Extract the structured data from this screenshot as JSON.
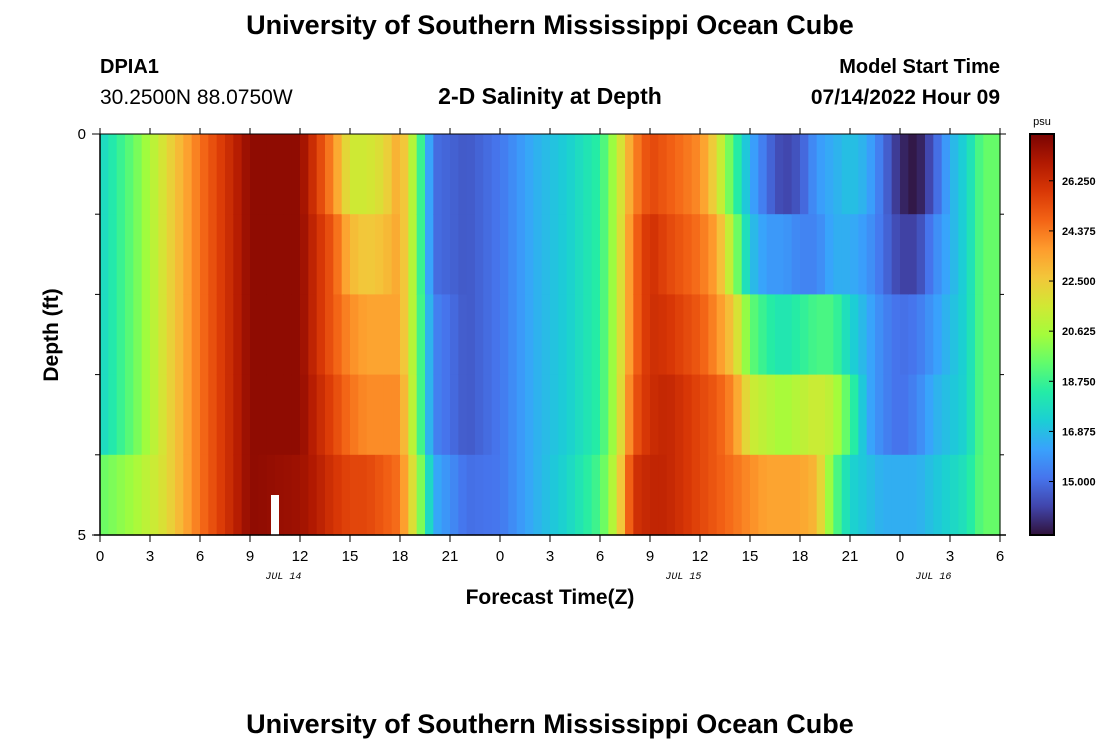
{
  "header": {
    "title": "University of Southern Mississippi Ocean Cube",
    "station": "DPIA1",
    "coordinates": "30.2500N  88.0750W",
    "subtitle": "2-D Salinity at Depth",
    "model_start_label": "Model Start Time",
    "model_start_value": "07/14/2022 Hour 09"
  },
  "footer": {
    "title": "University of Southern Mississippi Ocean Cube"
  },
  "chart_data": {
    "type": "heatmap",
    "title": "2-D Salinity at Depth",
    "xlabel": "Forecast Time(Z)",
    "ylabel": "Depth (ft)",
    "x_tick_labels": [
      "0",
      "3",
      "6",
      "9",
      "12",
      "15",
      "18",
      "21",
      "0",
      "3",
      "6",
      "9",
      "12",
      "15",
      "18",
      "21",
      "0",
      "3",
      "6"
    ],
    "date_labels": [
      {
        "label": "JUL 14",
        "hour_index": 11
      },
      {
        "label": "JUL 15",
        "hour_index": 35
      },
      {
        "label": "JUL 16",
        "hour_index": 50
      }
    ],
    "y_tick_labels": [
      "0",
      "5"
    ],
    "ylim": [
      0,
      5
    ],
    "x_hours": 54,
    "depth_levels": [
      0.5,
      1.5,
      2.5,
      3.5,
      4.5
    ],
    "colorbar": {
      "unit": "psu",
      "min": 13.0,
      "max": 28.0,
      "tick_labels": [
        "15.000",
        "16.875",
        "18.750",
        "20.625",
        "22.500",
        "24.375",
        "26.250"
      ],
      "colors": [
        "#30123b",
        "#4145ab",
        "#4675ed",
        "#39a2fc",
        "#1bcfd4",
        "#24eca6",
        "#61fc6c",
        "#a4fc3b",
        "#d1e834",
        "#f3c63a",
        "#fe9b2d",
        "#f36315",
        "#d93806",
        "#b11901",
        "#7a0403"
      ]
    },
    "salinity_profiles": [
      {
        "hour": 0,
        "values": [
          17.5,
          17.5,
          17.5,
          17.5,
          19.5
        ]
      },
      {
        "hour": 2,
        "values": [
          19.5,
          19.5,
          19.5,
          19.5,
          20.5
        ]
      },
      {
        "hour": 4,
        "values": [
          22.0,
          22.0,
          22.0,
          22.0,
          22.0
        ]
      },
      {
        "hour": 6,
        "values": [
          24.5,
          24.5,
          24.5,
          24.5,
          24.5
        ]
      },
      {
        "hour": 8,
        "values": [
          26.5,
          26.5,
          26.5,
          26.5,
          26.5
        ]
      },
      {
        "hour": 9,
        "values": [
          27.6,
          27.6,
          27.6,
          27.6,
          27.6
        ]
      },
      {
        "hour": 12,
        "values": [
          27.6,
          27.6,
          27.6,
          27.6,
          27.3
        ]
      },
      {
        "hour": 13,
        "values": [
          25.8,
          26.2,
          26.2,
          26.5,
          26.8
        ]
      },
      {
        "hour": 14,
        "values": [
          24.0,
          25.0,
          25.0,
          25.5,
          26.0
        ]
      },
      {
        "hour": 15,
        "values": [
          21.5,
          23.0,
          24.0,
          24.5,
          25.5
        ]
      },
      {
        "hour": 16,
        "values": [
          21.5,
          22.5,
          23.5,
          24.0,
          25.5
        ]
      },
      {
        "hour": 17,
        "values": [
          22.0,
          22.8,
          23.5,
          24.0,
          25.0
        ]
      },
      {
        "hour": 18,
        "values": [
          23.5,
          23.5,
          23.5,
          24.0,
          24.5
        ]
      },
      {
        "hour": 19,
        "values": [
          20.0,
          20.0,
          20.0,
          20.0,
          21.0
        ]
      },
      {
        "hour": 20,
        "values": [
          15.0,
          15.0,
          15.5,
          15.5,
          16.5
        ]
      },
      {
        "hour": 22,
        "values": [
          14.5,
          14.5,
          14.5,
          14.5,
          15.0
        ]
      },
      {
        "hour": 24,
        "values": [
          15.2,
          15.2,
          15.2,
          15.2,
          15.2
        ]
      },
      {
        "hour": 26,
        "values": [
          16.5,
          16.5,
          16.5,
          16.5,
          16.5
        ]
      },
      {
        "hour": 28,
        "values": [
          17.3,
          17.3,
          17.3,
          17.3,
          17.5
        ]
      },
      {
        "hour": 30,
        "values": [
          18.5,
          18.5,
          18.5,
          18.5,
          19.0
        ]
      },
      {
        "hour": 31,
        "values": [
          21.0,
          21.0,
          21.0,
          21.0,
          21.5
        ]
      },
      {
        "hour": 32,
        "values": [
          24.0,
          24.5,
          24.5,
          25.0,
          26.0
        ]
      },
      {
        "hour": 33,
        "values": [
          25.5,
          26.2,
          26.2,
          26.2,
          26.5
        ]
      },
      {
        "hour": 34,
        "values": [
          25.0,
          25.5,
          26.0,
          26.5,
          26.5
        ]
      },
      {
        "hour": 35,
        "values": [
          24.5,
          25.0,
          25.5,
          26.0,
          26.0
        ]
      },
      {
        "hour": 36,
        "values": [
          24.0,
          24.5,
          25.0,
          25.5,
          25.5
        ]
      },
      {
        "hour": 37,
        "values": [
          22.0,
          23.5,
          24.0,
          25.0,
          25.0
        ]
      },
      {
        "hour": 38,
        "values": [
          19.0,
          20.5,
          22.5,
          24.0,
          24.5
        ]
      },
      {
        "hour": 39,
        "values": [
          16.5,
          17.0,
          19.5,
          21.5,
          24.0
        ]
      },
      {
        "hour": 40,
        "values": [
          15.0,
          16.0,
          18.5,
          21.0,
          23.5
        ]
      },
      {
        "hour": 41,
        "values": [
          14.0,
          16.0,
          18.0,
          20.5,
          23.5
        ]
      },
      {
        "hour": 42,
        "values": [
          14.5,
          15.5,
          18.5,
          21.0,
          23.5
        ]
      },
      {
        "hour": 43,
        "values": [
          16.0,
          15.5,
          19.0,
          21.5,
          23.0
        ]
      },
      {
        "hour": 44,
        "values": [
          16.5,
          16.5,
          19.0,
          21.0,
          19.5
        ]
      },
      {
        "hour": 45,
        "values": [
          17.0,
          16.5,
          17.5,
          19.0,
          17.5
        ]
      },
      {
        "hour": 46,
        "values": [
          16.5,
          16.0,
          16.5,
          16.5,
          17.0
        ]
      },
      {
        "hour": 47,
        "values": [
          15.0,
          15.0,
          15.5,
          15.5,
          16.5
        ]
      },
      {
        "hour": 48,
        "values": [
          13.5,
          14.0,
          15.0,
          15.0,
          16.5
        ]
      },
      {
        "hour": 49,
        "values": [
          13.0,
          14.0,
          15.2,
          15.5,
          16.5
        ]
      },
      {
        "hour": 50,
        "values": [
          14.5,
          15.5,
          16.0,
          16.5,
          17.0
        ]
      },
      {
        "hour": 51,
        "values": [
          16.5,
          16.5,
          16.8,
          17.0,
          17.5
        ]
      },
      {
        "hour": 52,
        "values": [
          17.5,
          17.5,
          17.5,
          17.5,
          18.0
        ]
      },
      {
        "hour": 53,
        "values": [
          19.5,
          19.5,
          19.5,
          19.5,
          19.5
        ]
      },
      {
        "hour": 54,
        "values": [
          19.5,
          19.5,
          19.5,
          19.5,
          19.5
        ]
      }
    ]
  }
}
